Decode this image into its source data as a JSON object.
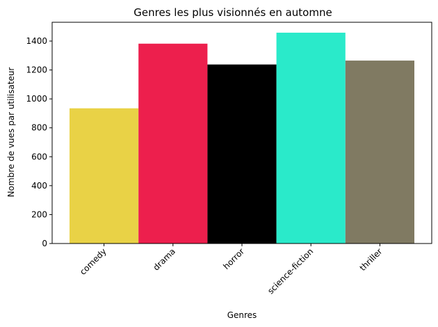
{
  "chart_data": {
    "type": "bar",
    "title": "Genres les plus visionnés en automne",
    "xlabel": "Genres",
    "ylabel": "Nombre de vues par utilisateur",
    "categories": [
      "comedy",
      "drama",
      "horror",
      "science-fiction",
      "thriller"
    ],
    "values": [
      935,
      1382,
      1238,
      1458,
      1265
    ],
    "colors": [
      "#e9d246",
      "#ed1f4d",
      "#000000",
      "#2aeaca",
      "#807a62"
    ],
    "ylim": [
      0,
      1530
    ],
    "yticks": [
      0,
      200,
      400,
      600,
      800,
      1000,
      1200,
      1400
    ],
    "grid": false,
    "legend": "none"
  }
}
